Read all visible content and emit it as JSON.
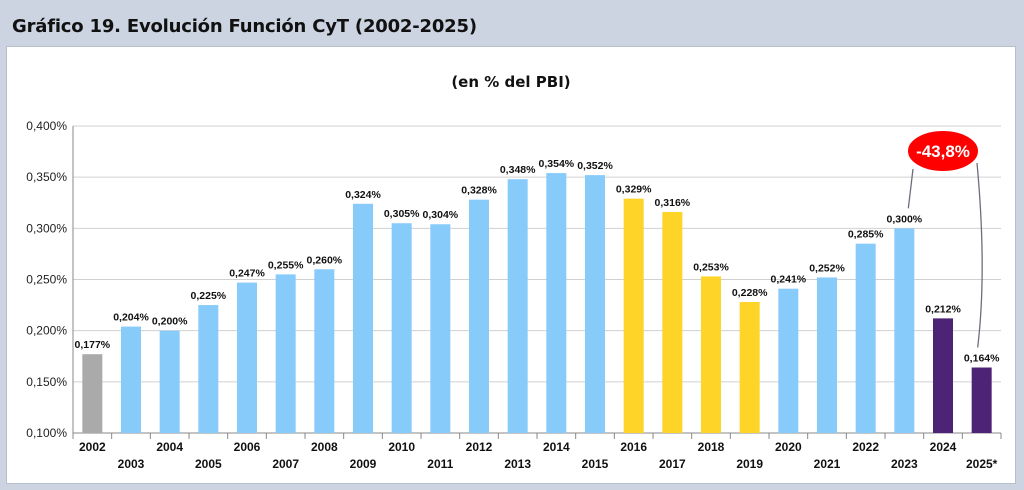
{
  "header": {
    "title": "Gráfico 19. Evolución Función CyT (2002-2025)"
  },
  "chart_data": {
    "type": "bar",
    "title": "Gráfico 19. Evolución Función CyT (2002-2025)",
    "subtitle": "(en % del PBI)",
    "categories": [
      "2002",
      "2003",
      "2004",
      "2005",
      "2006",
      "2007",
      "2008",
      "2009",
      "2010",
      "2011",
      "2012",
      "2013",
      "2014",
      "2015",
      "2016",
      "2017",
      "2018",
      "2019",
      "2020",
      "2021",
      "2022",
      "2023",
      "2024",
      "2025*"
    ],
    "values": [
      0.177,
      0.204,
      0.2,
      0.225,
      0.247,
      0.255,
      0.26,
      0.324,
      0.305,
      0.304,
      0.328,
      0.348,
      0.354,
      0.352,
      0.329,
      0.316,
      0.253,
      0.228,
      0.241,
      0.252,
      0.285,
      0.3,
      0.212,
      0.164
    ],
    "value_labels": [
      "0,177%",
      "0,204%",
      "0,200%",
      "0,225%",
      "0,247%",
      "0,255%",
      "0,260%",
      "0,324%",
      "0,305%",
      "0,304%",
      "0,328%",
      "0,348%",
      "0,354%",
      "0,352%",
      "0,329%",
      "0,316%",
      "0,253%",
      "0,228%",
      "0,241%",
      "0,252%",
      "0,285%",
      "0,300%",
      "0,212%",
      "0,164%"
    ],
    "bar_colors": [
      "#aaaaaa",
      "#87cbfb",
      "#87cbfb",
      "#87cbfb",
      "#87cbfb",
      "#87cbfb",
      "#87cbfb",
      "#87cbfb",
      "#87cbfb",
      "#87cbfb",
      "#87cbfb",
      "#87cbfb",
      "#87cbfb",
      "#87cbfb",
      "#fed429",
      "#fed429",
      "#fed429",
      "#fed429",
      "#87cbfb",
      "#87cbfb",
      "#87cbfb",
      "#87cbfb",
      "#4d2475",
      "#4d2475"
    ],
    "ylim": [
      0.1,
      0.4
    ],
    "yticks": [
      0.1,
      0.15,
      0.2,
      0.25,
      0.3,
      0.35,
      0.4
    ],
    "ytick_labels": [
      "0,100%",
      "0,150%",
      "0,200%",
      "0,250%",
      "0,300%",
      "0,350%",
      "0,400%"
    ],
    "xlabel": "",
    "ylabel": "",
    "grid": true,
    "legend": "none",
    "annotation": {
      "text": "-43,8%",
      "bg_color": "#ff0000",
      "text_color": "#ffffff"
    }
  }
}
